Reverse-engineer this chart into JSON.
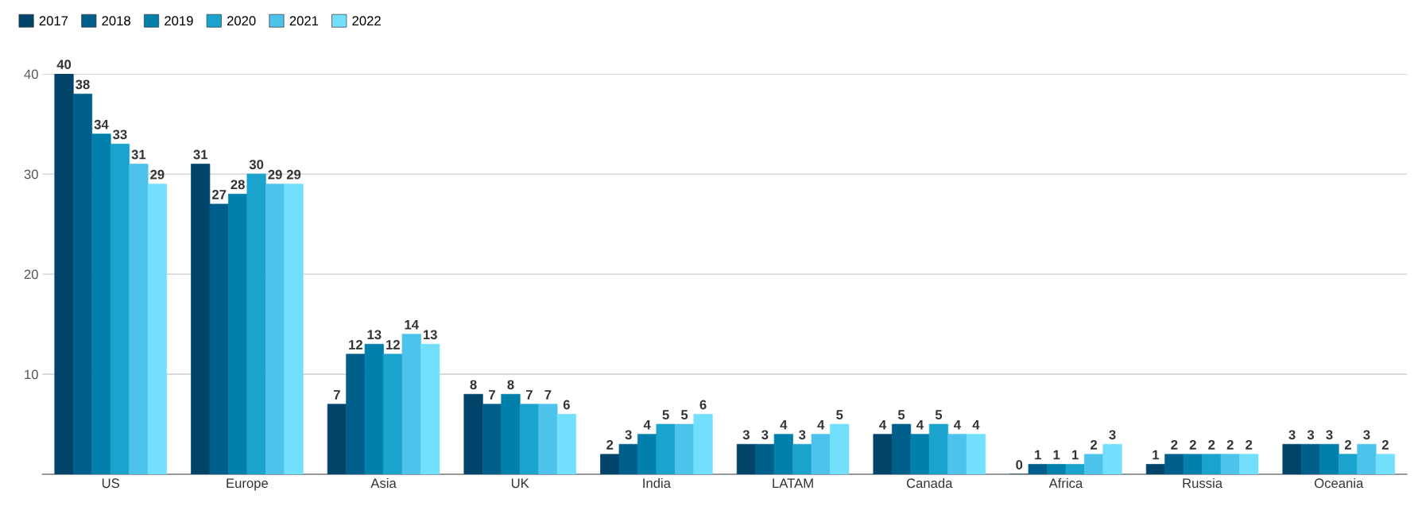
{
  "chart_data": {
    "type": "bar",
    "categories": [
      "US",
      "Europe",
      "Asia",
      "UK",
      "India",
      "LATAM",
      "Canada",
      "Africa",
      "Russia",
      "Oceania"
    ],
    "series": [
      {
        "name": "2017",
        "color": "#00446a",
        "values": [
          40,
          31,
          7,
          8,
          2,
          3,
          4,
          0,
          1,
          3
        ]
      },
      {
        "name": "2018",
        "color": "#005f8a",
        "values": [
          38,
          27,
          12,
          7,
          3,
          3,
          5,
          1,
          2,
          3
        ]
      },
      {
        "name": "2019",
        "color": "#0080aa",
        "values": [
          34,
          28,
          13,
          8,
          4,
          4,
          4,
          1,
          2,
          3
        ]
      },
      {
        "name": "2020",
        "color": "#1aa3cc",
        "values": [
          33,
          30,
          12,
          7,
          5,
          3,
          5,
          1,
          2,
          2
        ]
      },
      {
        "name": "2021",
        "color": "#4dc3ec",
        "values": [
          31,
          29,
          14,
          7,
          5,
          4,
          4,
          2,
          2,
          3
        ]
      },
      {
        "name": "2022",
        "color": "#72e0fc",
        "values": [
          29,
          29,
          13,
          6,
          6,
          5,
          4,
          3,
          2,
          2
        ]
      }
    ],
    "ylim": [
      0,
      40
    ],
    "yticks": [
      10,
      20,
      30,
      40
    ],
    "grid": "y",
    "legend": "top left",
    "data_labels": true
  }
}
